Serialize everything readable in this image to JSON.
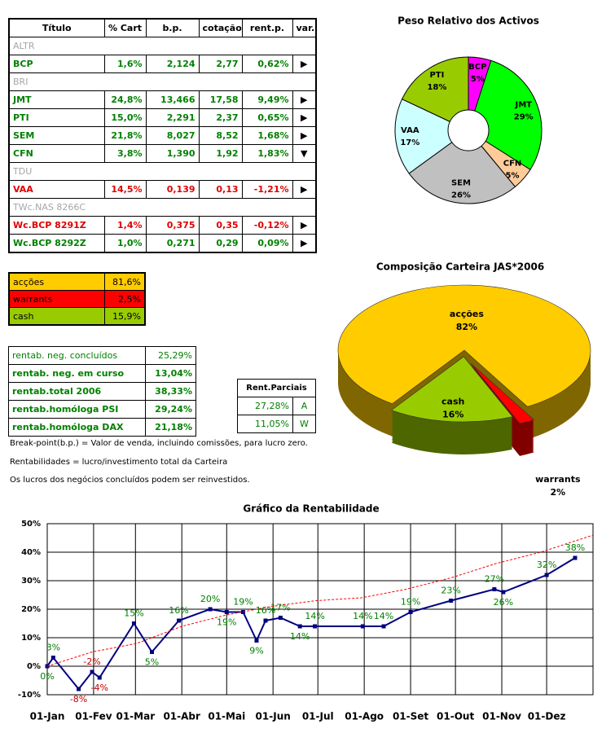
{
  "portfolio_table": {
    "headers": [
      "Título",
      "% Cart",
      "b.p.",
      "cotação",
      "rent.p.",
      "var."
    ],
    "rows": [
      {
        "cells": [
          "ALTR"
        ],
        "color": "#a6a6a6"
      },
      {
        "cells": [
          "BCP",
          "1,6%",
          "2,124",
          "2,77",
          "0,62%",
          "▶"
        ],
        "color": "#008000"
      },
      {
        "cells": [
          "BRI"
        ],
        "color": "#a6a6a6"
      },
      {
        "cells": [
          "JMT",
          "24,8%",
          "13,466",
          "17,58",
          "9,49%",
          "▶"
        ],
        "color": "#008000"
      },
      {
        "cells": [
          "PTI",
          "15,0%",
          "2,291",
          "2,37",
          "0,65%",
          "▶"
        ],
        "color": "#008000"
      },
      {
        "cells": [
          "SEM",
          "21,8%",
          "8,027",
          "8,52",
          "1,68%",
          "▶"
        ],
        "color": "#008000"
      },
      {
        "cells": [
          "CFN",
          "3,8%",
          "1,390",
          "1,92",
          "1,83%",
          "▼"
        ],
        "color": "#008000"
      },
      {
        "cells": [
          "TDU"
        ],
        "color": "#a6a6a6"
      },
      {
        "cells": [
          "VAA",
          "14,5%",
          "0,139",
          "0,13",
          "-1,21%",
          "▶"
        ],
        "color": "#e00000"
      },
      {
        "cells": [
          "TWc.NAS 8266C"
        ],
        "color": "#a6a6a6"
      },
      {
        "cells": [
          "Wc.BCP 8291Z",
          "1,4%",
          "0,375",
          "0,35",
          "-0,12%",
          "▶"
        ],
        "color": "#e00000"
      },
      {
        "cells": [
          "Wc.BCP 8292Z",
          "1,0%",
          "0,271",
          "0,29",
          "0,09%",
          "▶"
        ],
        "color": "#008000"
      }
    ]
  },
  "allocation_table": {
    "rows": [
      {
        "cells": [
          "acções",
          "81,6%"
        ],
        "color": "#ffcc00"
      },
      {
        "cells": [
          "warrants",
          "2,5%"
        ],
        "color": "#ff0000"
      },
      {
        "cells": [
          "cash",
          "15,9%"
        ],
        "color": "#99cc00"
      }
    ]
  },
  "returns_table": {
    "rows": [
      [
        "rentab. neg. concluídos",
        "25,29%"
      ],
      [
        "rentab. neg. em curso",
        "13,04%"
      ],
      [
        "rentab.total 2006",
        "38,33%"
      ],
      [
        "rentab.homóloga PSI",
        "29,24%"
      ],
      [
        "rentab.homóloga DAX",
        "21,18%"
      ]
    ]
  },
  "partial_returns_table": {
    "header": "Rent.Parciais",
    "rows": [
      [
        "27,28%",
        "A"
      ],
      [
        "11,05%",
        "W"
      ]
    ]
  },
  "notes": [
    "Break-point(b.p.) = Valor de venda, incluindo comissões, para lucro zero.",
    "Rentabilidades = lucro/investimento total da Carteira",
    "Os lucros dos negócios concluídos podem ser reinvestidos."
  ],
  "chart_data": [
    {
      "type": "donut",
      "title": "Peso Relativo dos Activos",
      "categories": [
        "BCP",
        "JMT",
        "CFN",
        "SEM",
        "VAA",
        "PTI"
      ],
      "values": [
        5,
        29,
        5,
        26,
        17,
        18
      ],
      "value_labels": [
        "5%",
        "29%",
        "5%",
        "26%",
        "17%",
        "18%"
      ],
      "colors": [
        "#ff00ff",
        "#00ff00",
        "#ffcc99",
        "#c0c0c0",
        "#ccffff",
        "#99cc00"
      ]
    },
    {
      "type": "pie3d",
      "title": "Composição Carteira JAS*2006",
      "categories": [
        "acções",
        "warrants",
        "cash"
      ],
      "values": [
        82,
        2,
        16
      ],
      "value_labels": [
        "82%",
        "2%",
        "16%"
      ],
      "colors": [
        "#ffcc00",
        "#ff0000",
        "#99cc00"
      ]
    },
    {
      "type": "line",
      "title": "Gráfico da Rentabilidade",
      "xlim": [
        0,
        365
      ],
      "xticks": [
        {
          "value": 0,
          "label": "01-Jan"
        },
        {
          "value": 31,
          "label": "01-Fev"
        },
        {
          "value": 59,
          "label": "01-Mar"
        },
        {
          "value": 90,
          "label": "01-Abr"
        },
        {
          "value": 120,
          "label": "01-Mai"
        },
        {
          "value": 151,
          "label": "01-Jun"
        },
        {
          "value": 181,
          "label": "01-Jul"
        },
        {
          "value": 212,
          "label": "01-Ago"
        },
        {
          "value": 243,
          "label": "01-Set"
        },
        {
          "value": 273,
          "label": "01-Out"
        },
        {
          "value": 304,
          "label": "01-Nov"
        },
        {
          "value": 334,
          "label": "01-Dez"
        }
      ],
      "ylim": [
        -10,
        50
      ],
      "yticks": [
        {
          "value": -10,
          "label": "-10%"
        },
        {
          "value": 0,
          "label": "0%"
        },
        {
          "value": 10,
          "label": "10%"
        },
        {
          "value": 20,
          "label": "20%"
        },
        {
          "value": 30,
          "label": "30%"
        },
        {
          "value": 40,
          "label": "40%"
        },
        {
          "value": 50,
          "label": "50%"
        }
      ],
      "grid": true,
      "series": [
        {
          "color": "#000080",
          "x": [
            0,
            4,
            21,
            30,
            35,
            58,
            70,
            88,
            109,
            120,
            131,
            140,
            146,
            156,
            169,
            179,
            211,
            225,
            243,
            270,
            299,
            305,
            334,
            353
          ],
          "values": [
            0,
            3,
            -8,
            -2,
            -4,
            15,
            5,
            16,
            20,
            19,
            19,
            9,
            16,
            17,
            14,
            14,
            14,
            14,
            19,
            23,
            27,
            26,
            32,
            38
          ],
          "value_labels": [
            "0%",
            "3%",
            "-8%",
            "-2%",
            "-4%",
            "15%",
            "5%",
            "16%",
            "20%",
            "19%",
            "19%",
            "9%",
            "16%",
            "17%",
            "14%",
            "14%",
            "14%",
            "14%",
            "19%",
            "23%",
            "27%",
            "26%",
            "32%",
            "38%"
          ]
        },
        {
          "color": "#ff0000",
          "dashed": true,
          "x": [
            0,
            30,
            60,
            90,
            120,
            150,
            180,
            210,
            240,
            270,
            300,
            330,
            365
          ],
          "values": [
            0,
            5,
            8,
            14,
            18,
            21,
            23,
            24,
            27,
            31,
            36,
            40,
            46
          ]
        }
      ]
    }
  ]
}
